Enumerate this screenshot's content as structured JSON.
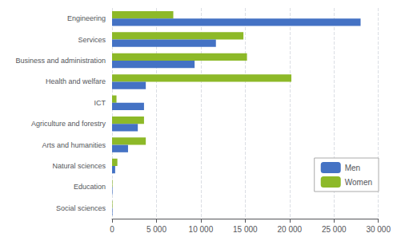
{
  "chart_data": {
    "type": "bar",
    "orientation": "horizontal",
    "categories": [
      "Social sciences",
      "Education",
      "Natural sciences",
      "Arts and humanities",
      "Agriculture and forestry",
      "ICT",
      "Health and welfare",
      "Business and administration",
      "Services",
      "Engineering"
    ],
    "series": [
      {
        "name": "Men",
        "color": "#4472c4",
        "values": [
          50,
          50,
          350,
          1800,
          2900,
          3600,
          3800,
          9300,
          11700,
          28000
        ]
      },
      {
        "name": "Women",
        "color": "#8db928",
        "values": [
          50,
          50,
          600,
          3800,
          3600,
          500,
          20200,
          15200,
          14800,
          6900
        ]
      }
    ],
    "xlim": [
      0,
      30000
    ],
    "xticks": [
      0,
      {
        "value": 5000,
        "label": "5 000"
      },
      {
        "value": 10000,
        "label": "10 000"
      },
      {
        "value": 15000,
        "label": "15 000"
      },
      {
        "value": 20000,
        "label": "20 000"
      },
      {
        "value": 25000,
        "label": "25 000"
      },
      {
        "value": 30000,
        "label": "30 000"
      }
    ],
    "grid": true,
    "legend": "lower right"
  }
}
